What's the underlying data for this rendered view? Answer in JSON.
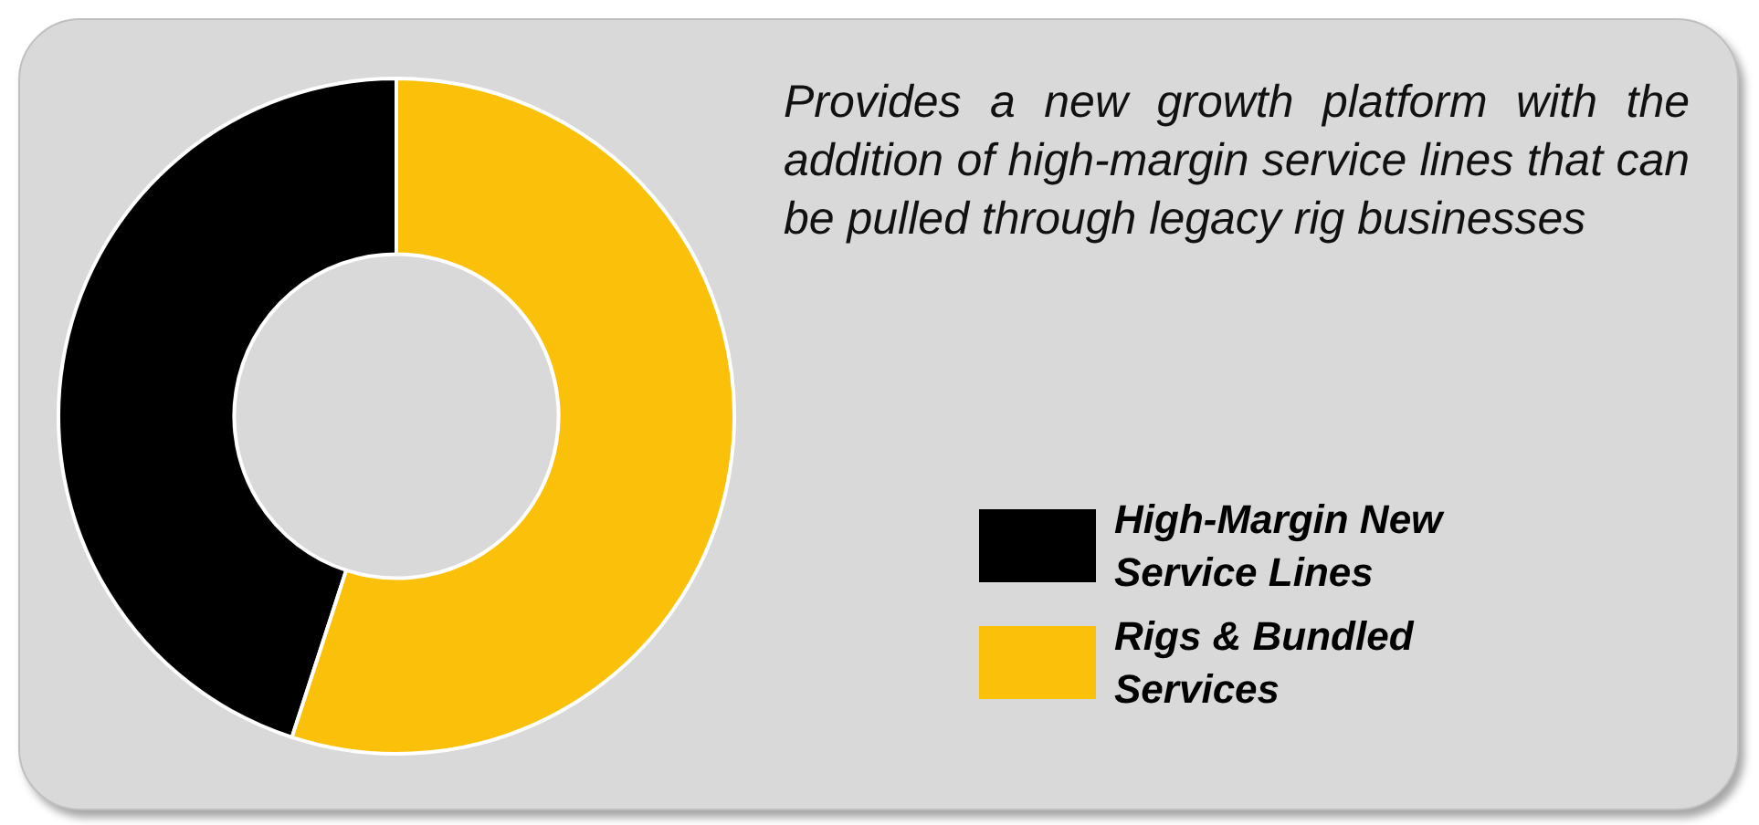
{
  "chart_data": {
    "type": "donut",
    "title": "Provides a new growth platform with the addition of high-margin service lines that can be pulled through legacy rig businesses",
    "categories": [
      "High-Margin New Service Lines",
      "Rigs & Bundled Services"
    ],
    "values": [
      45,
      55
    ],
    "colors": [
      "#000000",
      "#fac00a"
    ],
    "legend": "right"
  }
}
